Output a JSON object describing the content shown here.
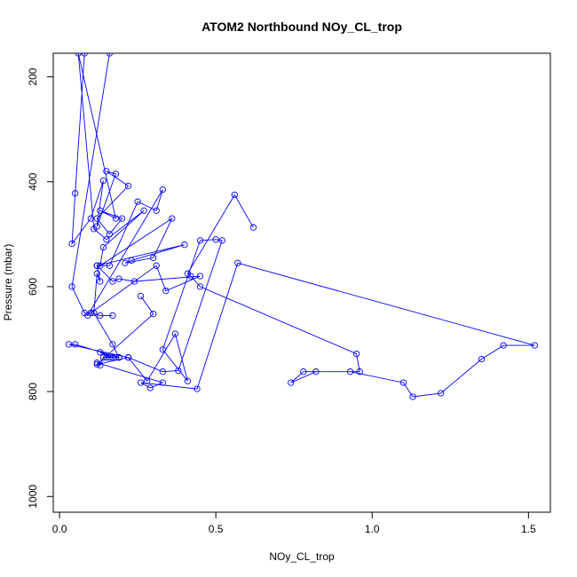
{
  "chart_data": {
    "type": "line",
    "title": "ATOM2 Northbound NOy_CL_trop",
    "xlabel": "NOy_CL_trop",
    "ylabel": "Pressure (mbar)",
    "xlim": [
      -0.02,
      1.57
    ],
    "ylim": [
      1030,
      155
    ],
    "y_reversed": true,
    "x_ticks": [
      {
        "value": 0.0,
        "label": "0.0"
      },
      {
        "value": 0.5,
        "label": "0.5"
      },
      {
        "value": 1.0,
        "label": "1.0"
      },
      {
        "value": 1.5,
        "label": "1.5"
      }
    ],
    "y_ticks": [
      {
        "value": 200,
        "label": "200"
      },
      {
        "value": 400,
        "label": "400"
      },
      {
        "value": 600,
        "label": "600"
      },
      {
        "value": 800,
        "label": "800"
      },
      {
        "value": 1000,
        "label": "1000"
      }
    ],
    "grid": false,
    "series_color": "#0000ff",
    "marker": "open-circle",
    "series": [
      {
        "x": [
          0.08,
          0.05,
          0.04,
          0.1,
          0.14,
          0.12,
          0.18,
          0.15,
          0.22,
          0.12,
          0.16,
          0.2,
          0.13,
          0.18,
          0.06,
          0.11,
          0.15,
          0.27,
          0.14,
          0.13,
          0.36,
          0.3,
          0.21,
          0.23,
          0.4,
          0.12,
          0.17,
          0.19,
          0.24,
          0.45,
          0.34,
          0.31,
          0.1,
          0.13,
          0.17
        ],
        "y": [
          155,
          422,
          518,
          470,
          398,
          485,
          385,
          380,
          408,
          470,
          500,
          470,
          455,
          470,
          155,
          490,
          510,
          455,
          525,
          560,
          470,
          545,
          555,
          550,
          520,
          560,
          590,
          585,
          590,
          580,
          608,
          560,
          650,
          655,
          655
        ]
      },
      {
        "x": [
          0.16,
          0.04,
          0.08,
          0.09,
          0.33,
          0.31,
          0.25,
          0.16,
          0.12,
          0.13,
          0.12,
          0.11,
          0.17,
          0.19,
          0.05,
          0.03,
          0.22,
          0.33,
          0.38,
          0.52,
          0.5,
          0.45,
          0.33,
          0.41,
          0.37,
          0.28,
          0.22,
          0.12,
          0.3,
          0.26
        ],
        "y": [
          155,
          600,
          650,
          655,
          415,
          455,
          438,
          560,
          560,
          590,
          575,
          650,
          710,
          735,
          710,
          710,
          735,
          762,
          760,
          512,
          510,
          512,
          720,
          780,
          690,
          780,
          735,
          748,
          652,
          618
        ]
      },
      {
        "x": [
          0.62,
          0.56,
          0.41,
          0.42,
          0.45,
          0.95,
          0.96,
          0.78,
          0.74,
          0.82,
          0.93,
          1.1,
          1.13,
          1.22,
          1.35,
          1.42,
          1.52,
          0.57,
          0.44,
          0.26,
          0.29,
          0.33,
          0.12,
          0.13,
          0.14,
          0.19,
          0.15,
          0.17,
          0.13,
          0.16,
          0.18
        ],
        "y": [
          487,
          425,
          575,
          580,
          600,
          728,
          762,
          762,
          783,
          762,
          762,
          783,
          810,
          803,
          738,
          712,
          712,
          555,
          795,
          783,
          793,
          783,
          745,
          750,
          735,
          735,
          735,
          735,
          725,
          735,
          735
        ]
      }
    ]
  }
}
